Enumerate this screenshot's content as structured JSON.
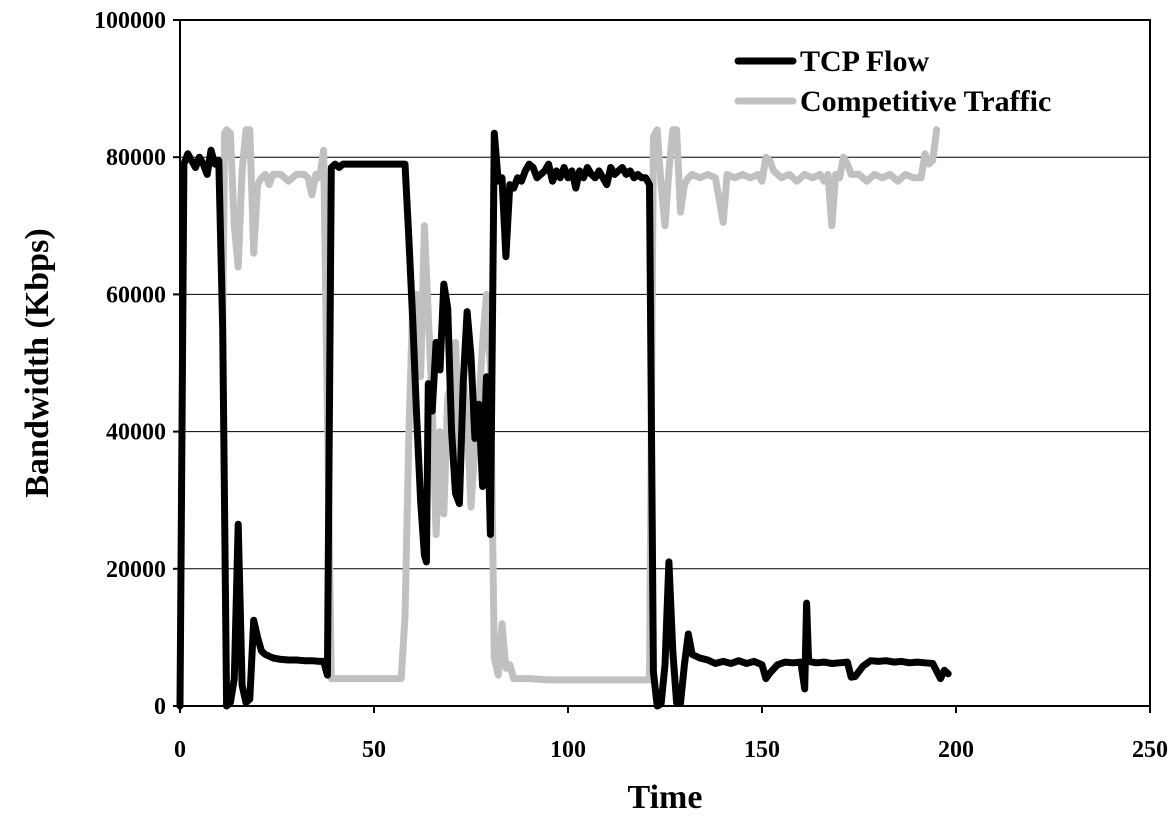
{
  "chart_data": {
    "type": "line",
    "title": "",
    "xlabel": "Time",
    "ylabel": "Bandwidth (Kbps)",
    "xlim": [
      0,
      250
    ],
    "ylim": [
      0,
      100000
    ],
    "xticks": [
      "0",
      "50",
      "100",
      "150",
      "200",
      "250"
    ],
    "yticks": [
      "0",
      "20000",
      "40000",
      "60000",
      "80000",
      "100000"
    ],
    "grid": "horizontal",
    "legend_position": "top-right",
    "series": [
      {
        "name": "TCP Flow",
        "color": "#000000",
        "points": [
          [
            0,
            0
          ],
          [
            1,
            79000
          ],
          [
            2,
            80500
          ],
          [
            3,
            79500
          ],
          [
            4,
            78500
          ],
          [
            5,
            80000
          ],
          [
            6,
            79000
          ],
          [
            7,
            77500
          ],
          [
            8,
            81000
          ],
          [
            9,
            79000
          ],
          [
            10,
            79500
          ],
          [
            11,
            55000
          ],
          [
            12,
            0
          ],
          [
            13,
            500
          ],
          [
            14,
            4000
          ],
          [
            15,
            26500
          ],
          [
            16,
            3000
          ],
          [
            17,
            500
          ],
          [
            18,
            1000
          ],
          [
            19,
            12500
          ],
          [
            20,
            10000
          ],
          [
            21,
            8000
          ],
          [
            22,
            7500
          ],
          [
            24,
            7000
          ],
          [
            26,
            6800
          ],
          [
            28,
            6700
          ],
          [
            30,
            6700
          ],
          [
            32,
            6600
          ],
          [
            34,
            6600
          ],
          [
            36,
            6500
          ],
          [
            37,
            6500
          ],
          [
            38,
            4500
          ],
          [
            39,
            78500
          ],
          [
            40,
            79000
          ],
          [
            41,
            78500
          ],
          [
            42,
            79000
          ],
          [
            45,
            79000
          ],
          [
            50,
            79000
          ],
          [
            55,
            79000
          ],
          [
            57,
            79000
          ],
          [
            58,
            79000
          ],
          [
            59,
            68000
          ],
          [
            60,
            56000
          ],
          [
            61,
            42000
          ],
          [
            62,
            30000
          ],
          [
            63,
            22000
          ],
          [
            63.5,
            21000
          ],
          [
            64,
            47000
          ],
          [
            65,
            43000
          ],
          [
            66,
            53000
          ],
          [
            67,
            49000
          ],
          [
            68,
            61500
          ],
          [
            69,
            58000
          ],
          [
            70,
            40000
          ],
          [
            71,
            31000
          ],
          [
            72,
            29500
          ],
          [
            73,
            47000
          ],
          [
            74,
            57500
          ],
          [
            75,
            51000
          ],
          [
            76,
            39000
          ],
          [
            77,
            44000
          ],
          [
            78,
            32000
          ],
          [
            79,
            48000
          ],
          [
            80,
            25000
          ],
          [
            81,
            83500
          ],
          [
            82,
            76500
          ],
          [
            83,
            77000
          ],
          [
            84,
            65500
          ],
          [
            85,
            76000
          ],
          [
            86,
            75500
          ],
          [
            87,
            77000
          ],
          [
            88,
            76500
          ],
          [
            89,
            78000
          ],
          [
            90,
            79000
          ],
          [
            91,
            78500
          ],
          [
            92,
            77000
          ],
          [
            93,
            77500
          ],
          [
            94,
            78000
          ],
          [
            95,
            79000
          ],
          [
            96,
            76500
          ],
          [
            97,
            78000
          ],
          [
            98,
            77000
          ],
          [
            99,
            78500
          ],
          [
            100,
            77000
          ],
          [
            101,
            78000
          ],
          [
            102,
            75500
          ],
          [
            103,
            78000
          ],
          [
            104,
            77000
          ],
          [
            105,
            78500
          ],
          [
            106,
            77500
          ],
          [
            107,
            77000
          ],
          [
            108,
            78000
          ],
          [
            109,
            77000
          ],
          [
            110,
            76000
          ],
          [
            111,
            78500
          ],
          [
            112,
            77500
          ],
          [
            113,
            78000
          ],
          [
            114,
            78500
          ],
          [
            115,
            77500
          ],
          [
            116,
            78000
          ],
          [
            117,
            77000
          ],
          [
            118,
            77500
          ],
          [
            119,
            77000
          ],
          [
            120,
            77000
          ],
          [
            121,
            76000
          ],
          [
            122,
            5000
          ],
          [
            123,
            0
          ],
          [
            124,
            300
          ],
          [
            125,
            6000
          ],
          [
            126,
            21000
          ],
          [
            127,
            8000
          ],
          [
            128,
            500
          ],
          [
            129,
            400
          ],
          [
            130,
            6000
          ],
          [
            131,
            10500
          ],
          [
            132,
            7500
          ],
          [
            134,
            7000
          ],
          [
            136,
            6700
          ],
          [
            138,
            6200
          ],
          [
            140,
            6500
          ],
          [
            142,
            6200
          ],
          [
            144,
            6600
          ],
          [
            146,
            6200
          ],
          [
            148,
            6500
          ],
          [
            150,
            6000
          ],
          [
            151,
            4000
          ],
          [
            152,
            4800
          ],
          [
            154,
            6000
          ],
          [
            156,
            6400
          ],
          [
            158,
            6300
          ],
          [
            160,
            6400
          ],
          [
            161,
            2500
          ],
          [
            161.5,
            15000
          ],
          [
            162,
            6500
          ],
          [
            164,
            6300
          ],
          [
            166,
            6400
          ],
          [
            168,
            6200
          ],
          [
            170,
            6300
          ],
          [
            172,
            6400
          ],
          [
            173,
            4200
          ],
          [
            174,
            4300
          ],
          [
            176,
            5800
          ],
          [
            178,
            6600
          ],
          [
            180,
            6500
          ],
          [
            182,
            6600
          ],
          [
            184,
            6400
          ],
          [
            186,
            6500
          ],
          [
            188,
            6300
          ],
          [
            190,
            6400
          ],
          [
            192,
            6300
          ],
          [
            194,
            6200
          ],
          [
            196,
            4000
          ],
          [
            197,
            5200
          ],
          [
            198,
            4700
          ]
        ]
      },
      {
        "name": "Competitive Traffic",
        "color": "#c0c0c0",
        "points": [
          [
            11,
            56000
          ],
          [
            11.5,
            83500
          ],
          [
            12,
            84000
          ],
          [
            13,
            83500
          ],
          [
            14,
            70000
          ],
          [
            15,
            64000
          ],
          [
            16,
            78000
          ],
          [
            17,
            84000
          ],
          [
            18,
            84000
          ],
          [
            19,
            66000
          ],
          [
            20,
            76000
          ],
          [
            21,
            77000
          ],
          [
            22,
            77500
          ],
          [
            23,
            76000
          ],
          [
            24,
            77500
          ],
          [
            26,
            77500
          ],
          [
            28,
            76500
          ],
          [
            30,
            77500
          ],
          [
            32,
            77500
          ],
          [
            33,
            77000
          ],
          [
            34,
            74500
          ],
          [
            35,
            77500
          ],
          [
            36,
            77000
          ],
          [
            37,
            81000
          ],
          [
            38,
            43000
          ],
          [
            39,
            4000
          ],
          [
            40,
            4000
          ],
          [
            42,
            4000
          ],
          [
            45,
            4000
          ],
          [
            50,
            4000
          ],
          [
            55,
            4000
          ],
          [
            57,
            4000
          ],
          [
            58,
            13000
          ],
          [
            59,
            40000
          ],
          [
            60,
            59000
          ],
          [
            61,
            60000
          ],
          [
            62,
            48000
          ],
          [
            63,
            70000
          ],
          [
            64,
            57000
          ],
          [
            65,
            44000
          ],
          [
            66,
            25000
          ],
          [
            67,
            40000
          ],
          [
            68,
            28000
          ],
          [
            69,
            45000
          ],
          [
            70,
            47000
          ],
          [
            71,
            53000
          ],
          [
            72,
            36000
          ],
          [
            73,
            48000
          ],
          [
            74,
            42000
          ],
          [
            75,
            29000
          ],
          [
            76,
            38000
          ],
          [
            77,
            44000
          ],
          [
            78,
            53000
          ],
          [
            79,
            60000
          ],
          [
            80,
            49000
          ],
          [
            81,
            7000
          ],
          [
            82,
            4500
          ],
          [
            83,
            12000
          ],
          [
            84,
            5500
          ],
          [
            85,
            6000
          ],
          [
            86,
            4000
          ],
          [
            88,
            4000
          ],
          [
            90,
            4000
          ],
          [
            95,
            3800
          ],
          [
            100,
            3800
          ],
          [
            105,
            3800
          ],
          [
            110,
            3800
          ],
          [
            115,
            3800
          ],
          [
            120,
            3800
          ],
          [
            121,
            3800
          ],
          [
            122,
            83000
          ],
          [
            123,
            84000
          ],
          [
            124,
            76000
          ],
          [
            125,
            70000
          ],
          [
            126,
            78000
          ],
          [
            127,
            84000
          ],
          [
            128,
            84000
          ],
          [
            129,
            72000
          ],
          [
            130,
            76000
          ],
          [
            131,
            77000
          ],
          [
            132,
            77500
          ],
          [
            134,
            77000
          ],
          [
            136,
            77500
          ],
          [
            138,
            77000
          ],
          [
            140,
            70500
          ],
          [
            141,
            77500
          ],
          [
            143,
            77000
          ],
          [
            145,
            77500
          ],
          [
            147,
            77000
          ],
          [
            149,
            77500
          ],
          [
            150,
            76500
          ],
          [
            151,
            80000
          ],
          [
            152,
            79500
          ],
          [
            153,
            78000
          ],
          [
            155,
            77000
          ],
          [
            157,
            77500
          ],
          [
            159,
            76500
          ],
          [
            161,
            77500
          ],
          [
            163,
            77000
          ],
          [
            165,
            77500
          ],
          [
            166,
            76500
          ],
          [
            167,
            77500
          ],
          [
            168,
            70000
          ],
          [
            169,
            77500
          ],
          [
            170,
            77000
          ],
          [
            171,
            80000
          ],
          [
            172,
            79000
          ],
          [
            173,
            77500
          ],
          [
            175,
            77500
          ],
          [
            177,
            76500
          ],
          [
            179,
            77500
          ],
          [
            181,
            77000
          ],
          [
            183,
            77500
          ],
          [
            185,
            76500
          ],
          [
            187,
            77500
          ],
          [
            189,
            77000
          ],
          [
            191,
            77000
          ],
          [
            192,
            80500
          ],
          [
            193,
            79000
          ],
          [
            194,
            79500
          ],
          [
            195,
            84000
          ]
        ]
      }
    ]
  }
}
